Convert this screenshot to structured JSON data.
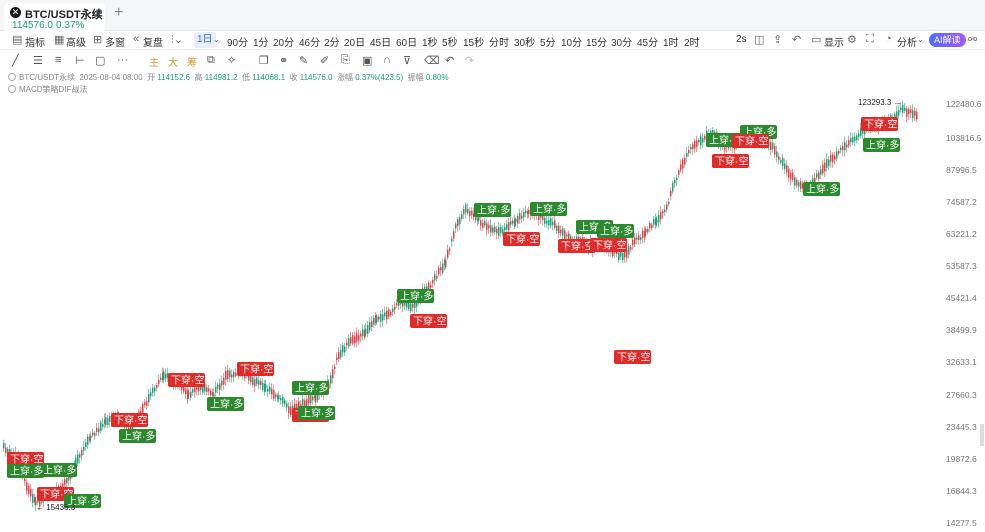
{
  "tab": {
    "symbol": "BTC/USDT永续",
    "price": "114576.0",
    "change": "0.37%",
    "close_glyph": "✕",
    "new_tab_glyph": "+"
  },
  "toolbar": {
    "items": [
      "指标",
      "高级",
      "多窗",
      "复盘",
      "1日",
      "90分",
      "1分",
      "20分",
      "46分",
      "2分",
      "20日",
      "45日",
      "60日",
      "1秒",
      "5秒",
      "15秒",
      "分时",
      "30秒",
      "5分",
      "10分",
      "15分",
      "30分",
      "45分",
      "1时",
      "2时",
      "2s",
      "显示",
      "分析"
    ],
    "ai": "AI解读",
    "active": "1日"
  },
  "drawtools": {
    "zhu": "主",
    "da": "大",
    "chou": "筹"
  },
  "info": {
    "symbol": "BTC/USDT永续",
    "date": "2025-08-04 08:00",
    "open_label": "开",
    "open": "114152.6",
    "high_label": "高",
    "high": "114981.2",
    "low_label": "低",
    "low": "114068.1",
    "close_label": "收",
    "close": "114576.0",
    "chg_label": "涨幅",
    "chg": "0.37%(423.5)",
    "amp_label": "振幅",
    "amp": "0.80%",
    "indicator": "MACD策略DIF战法"
  },
  "chart_data": {
    "type": "candlestick",
    "yticks": [
      "122480.6",
      "103816.5",
      "87996.5",
      "74587.2",
      "63221.2",
      "53587.3",
      "45421.4",
      "38499.9",
      "32633.1",
      "27660.3",
      "23445.3",
      "19872.6",
      "16844.3",
      "14277.5"
    ],
    "high_marker": "123293.3 →",
    "low_marker": "← 15436.3",
    "signals": [
      {
        "label": "下穿·空",
        "kind": "short"
      },
      {
        "label": "上穿·多",
        "kind": "long"
      },
      {
        "label": "下穿·空",
        "kind": "short"
      },
      {
        "label": "上穿·多",
        "kind": "long"
      },
      {
        "label": "上穿·多",
        "kind": "long"
      },
      {
        "label": "下穿·空",
        "kind": "short"
      },
      {
        "label": "上穿·多",
        "kind": "long"
      },
      {
        "label": "下穿·空",
        "kind": "short"
      },
      {
        "label": "上穿·多",
        "kind": "long"
      },
      {
        "label": "下穿·空",
        "kind": "short"
      },
      {
        "label": "上穿·多",
        "kind": "long"
      },
      {
        "label": "下穿·空",
        "kind": "short"
      },
      {
        "label": "上穿·多",
        "kind": "long"
      },
      {
        "label": "上穿·多",
        "kind": "long"
      },
      {
        "label": "下穿·空",
        "kind": "short"
      },
      {
        "label": "上穿·多",
        "kind": "long"
      },
      {
        "label": "下穿·空",
        "kind": "short"
      },
      {
        "label": "上穿·多",
        "kind": "long"
      },
      {
        "label": "下穿·空",
        "kind": "short"
      },
      {
        "label": "上穿·多",
        "kind": "long"
      },
      {
        "label": "下穿·空",
        "kind": "short"
      },
      {
        "label": "上穿·多",
        "kind": "long"
      },
      {
        "label": "下穿·空",
        "kind": "short"
      },
      {
        "label": "上穿·多",
        "kind": "long"
      },
      {
        "label": "下穿·空",
        "kind": "short"
      },
      {
        "label": "上穿·多",
        "kind": "long"
      },
      {
        "label": "下穿·空",
        "kind": "short"
      },
      {
        "label": "上穿·多",
        "kind": "long"
      },
      {
        "label": "下穿·空",
        "kind": "short"
      },
      {
        "label": "上穿·多",
        "kind": "long"
      }
    ],
    "colors": {
      "up": "#1ba27a",
      "down": "#e0424a",
      "short_bg": "#e12b2b",
      "long_bg": "#2c8a2e"
    }
  }
}
